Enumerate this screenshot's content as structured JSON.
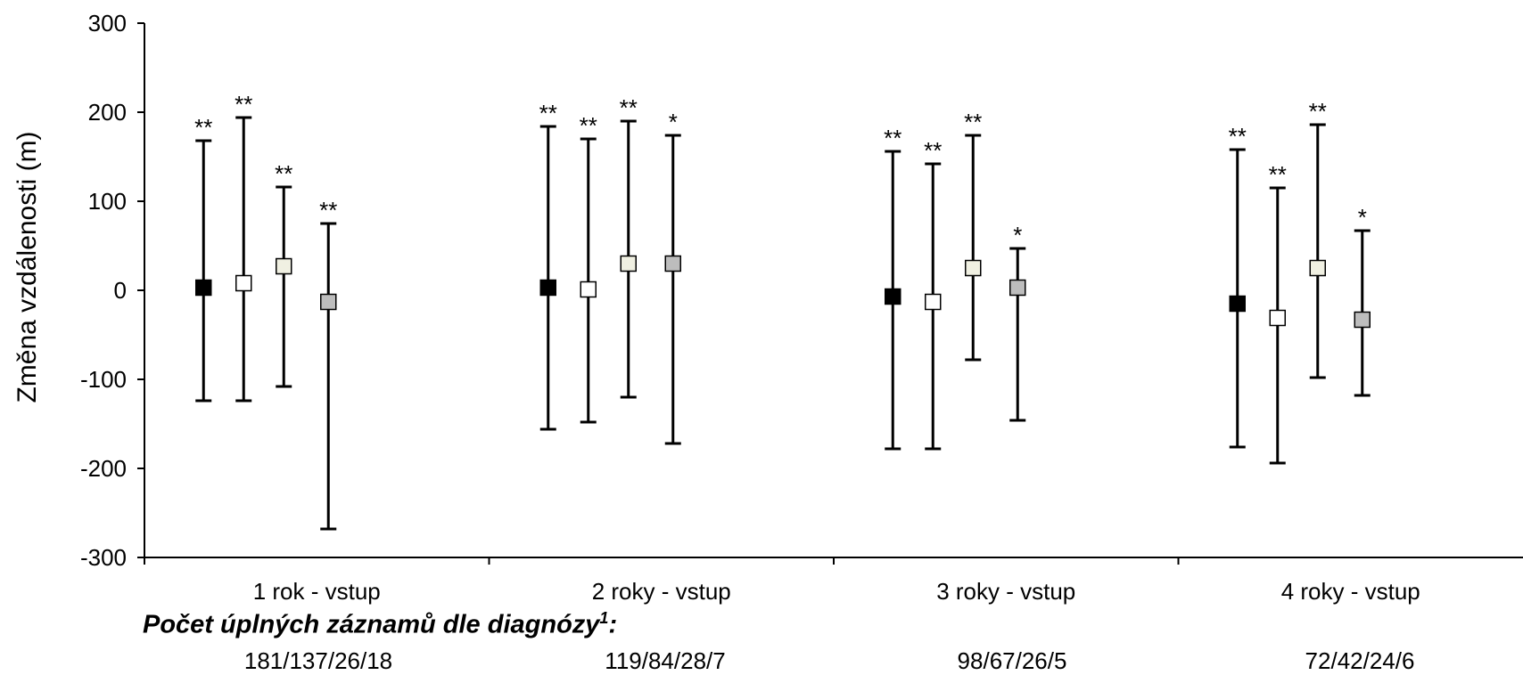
{
  "chart_data": {
    "type": "errorbar",
    "ylabel": "Změna vzdálenosti (m)",
    "xlabel": "",
    "title": "",
    "ylim": [
      -300,
      300
    ],
    "yticks": [
      300,
      200,
      100,
      0,
      -100,
      -200,
      -300
    ],
    "categories": [
      "1 rok - vstup",
      "2 roky - vstup",
      "3 roky - vstup",
      "4 roky - vstup"
    ],
    "grid": false,
    "series": [
      {
        "marker_color": "#000000",
        "center": [
          3,
          3,
          -7,
          -15
        ],
        "upper": [
          168,
          184,
          156,
          158
        ],
        "lower": [
          -124,
          -156,
          -178,
          -176
        ],
        "significance": [
          "**",
          "**",
          "**",
          "**"
        ]
      },
      {
        "marker_color": "#ffffff",
        "center": [
          8,
          1,
          -13,
          -31
        ],
        "upper": [
          194,
          170,
          142,
          115
        ],
        "lower": [
          -124,
          -148,
          -178,
          -194
        ],
        "significance": [
          "**",
          "**",
          "**",
          "**"
        ]
      },
      {
        "marker_color": "#f0f0e2",
        "center": [
          27,
          30,
          25,
          25
        ],
        "upper": [
          116,
          190,
          174,
          186
        ],
        "lower": [
          -108,
          -120,
          -78,
          -98
        ],
        "significance": [
          "**",
          "**",
          "**",
          "**"
        ]
      },
      {
        "marker_color": "#bdbdbd",
        "center": [
          -13,
          30,
          3,
          -33
        ],
        "upper": [
          75,
          174,
          47,
          67
        ],
        "lower": [
          -268,
          -172,
          -146,
          -118
        ],
        "significance": [
          "**",
          "*",
          "*",
          "*"
        ]
      }
    ]
  },
  "footnote": {
    "heading": "Počet úplných záznamů dle diagnózy",
    "heading_sup": "1",
    "heading_suffix": ":",
    "counts": [
      "181/137/26/18",
      "119/84/28/7",
      "98/67/26/5",
      "72/42/24/6"
    ]
  }
}
